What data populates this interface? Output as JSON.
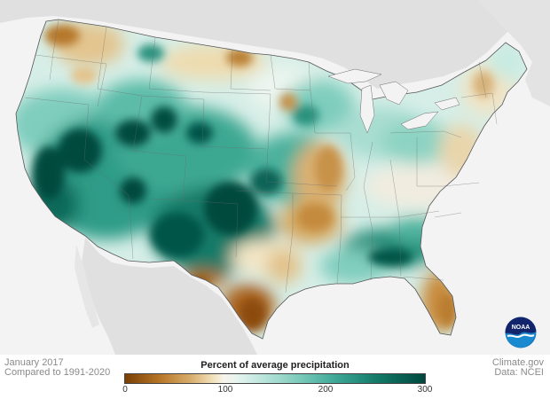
{
  "map": {
    "caption_date": "January 2017",
    "caption_compare": "Compared to 1991-2020",
    "credit": "Climate.gov",
    "data_source": "Data: NCEI"
  },
  "legend": {
    "title": "Percent of average precipitation",
    "ticks": [
      "0",
      "100",
      "200",
      "300"
    ],
    "range": [
      0,
      300
    ],
    "colors": {
      "dry_dark": "#7a3f05",
      "dry_mid": "#b8782a",
      "dry_light": "#f0dfb6",
      "normal": "#f7f5ec",
      "wet_light": "#b6e3d9",
      "wet_mid": "#3fa896",
      "wet_dark": "#00483d"
    }
  },
  "logo": {
    "text": "NOAA",
    "icon": "noaa-logo-icon"
  }
}
